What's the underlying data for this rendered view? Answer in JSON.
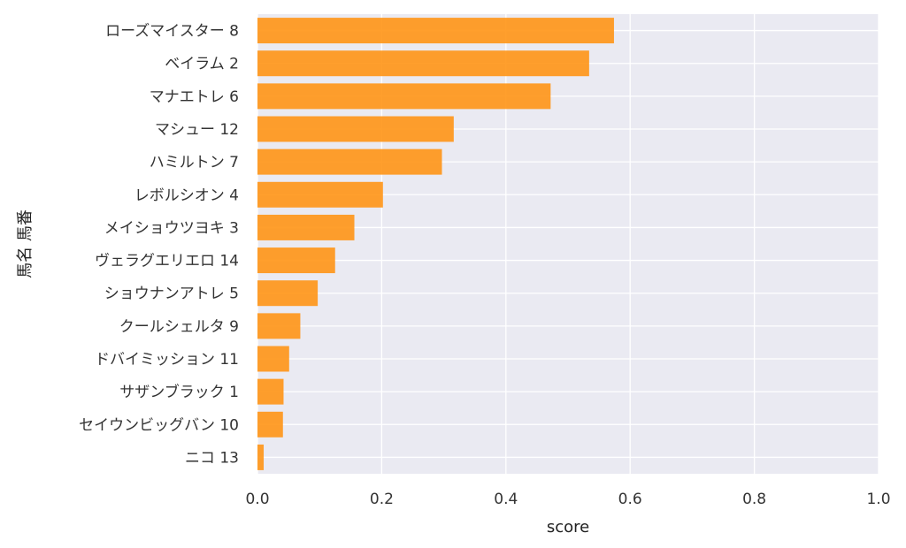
{
  "chart_data": {
    "type": "bar",
    "orientation": "horizontal",
    "categories": [
      "ローズマイスター 8",
      "ベイラム 2",
      "マナエトレ 6",
      "マシュー 12",
      "ハミルトン 7",
      "レボルシオン 4",
      "メイショウツヨキ 3",
      "ヴェラグエリエロ 14",
      "ショウナンアトレ 5",
      "クールシェルタ 9",
      "ドバイミッション 11",
      "サザンブラック 1",
      "セイウンビッグバン 10",
      "ニコ 13"
    ],
    "values": [
      0.574,
      0.534,
      0.472,
      0.316,
      0.297,
      0.202,
      0.156,
      0.125,
      0.097,
      0.069,
      0.051,
      0.042,
      0.041,
      0.01
    ],
    "xlabel": "score",
    "ylabel": "馬名 馬番",
    "xlim": [
      0,
      1.0
    ],
    "xticks": [
      "0.0",
      "0.2",
      "0.4",
      "0.6",
      "0.8",
      "1.0"
    ],
    "grid": true,
    "bar_color": "#ff9516",
    "background_color": "#eaeaf2"
  }
}
